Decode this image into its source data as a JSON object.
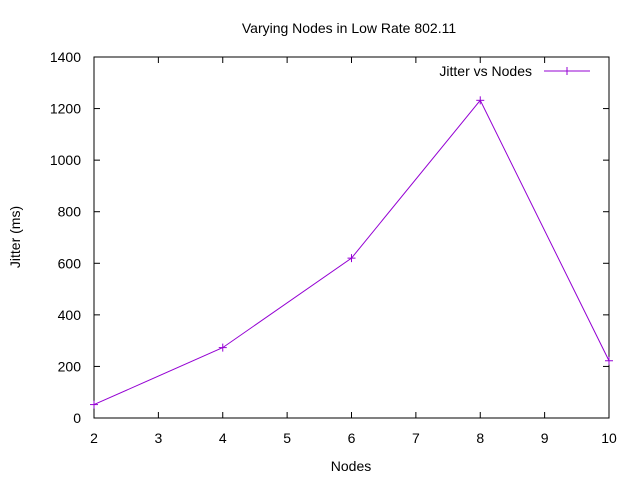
{
  "chart_data": {
    "type": "line",
    "title": "Varying Nodes in Low Rate 802.11",
    "xlabel": "Nodes",
    "ylabel": "Jitter (ms)",
    "xlim": [
      2,
      10
    ],
    "ylim": [
      0,
      1400
    ],
    "xticks": [
      2,
      3,
      4,
      5,
      6,
      7,
      8,
      9,
      10
    ],
    "yticks": [
      0,
      200,
      400,
      600,
      800,
      1000,
      1200,
      1400
    ],
    "grid": false,
    "legend_position": "top-right",
    "series": [
      {
        "name": "Jitter vs Nodes",
        "color": "#9400d3",
        "marker": "plus",
        "x": [
          2,
          4,
          6,
          8,
          10
        ],
        "y": [
          52,
          273,
          620,
          1232,
          222
        ]
      }
    ]
  }
}
